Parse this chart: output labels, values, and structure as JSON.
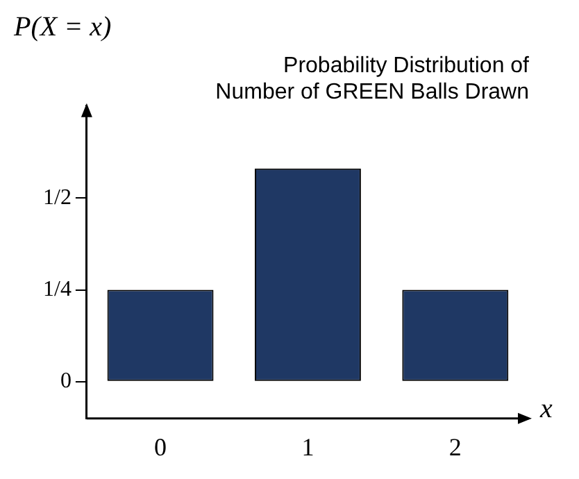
{
  "chart_data": {
    "type": "bar",
    "title": "Probability Distribution of\nNumber of GREEN Balls Drawn",
    "xlabel": "x",
    "ylabel": "P(X = x)",
    "categories": [
      "0",
      "1",
      "2"
    ],
    "values": [
      0.25,
      0.58,
      0.25
    ],
    "color": "#1f3864",
    "ylim": [
      -0.1,
      0.75
    ],
    "yticks": [
      {
        "value": 0,
        "label": "0"
      },
      {
        "value": 0.25,
        "label": "1/4"
      },
      {
        "value": 0.5,
        "label": "1/2"
      }
    ],
    "grid": false,
    "legend": false
  }
}
